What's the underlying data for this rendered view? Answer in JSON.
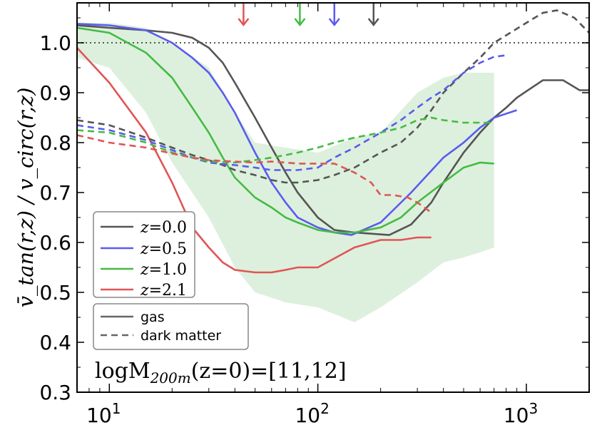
{
  "chart_data": {
    "type": "line",
    "x_scale": "log",
    "xlim": [
      7,
      2000
    ],
    "ylim": [
      0.3,
      1.08
    ],
    "ylabel": "v̄_tan(r,z) / v_circ(r,z)",
    "ytick_labels": [
      "0.3",
      "0.4",
      "0.5",
      "0.6",
      "0.7",
      "0.8",
      "0.9",
      "1.0"
    ],
    "yticks": [
      0.3,
      0.4,
      0.5,
      0.6,
      0.7,
      0.8,
      0.9,
      1.0
    ],
    "xticks": [
      10,
      100,
      1000
    ],
    "xtick_bases": [
      "10",
      "10",
      "10"
    ],
    "xtick_exps": [
      "1",
      "2",
      "3"
    ],
    "reference_line": {
      "y": 1.0,
      "style": "dotted",
      "color": "#555555"
    },
    "annotation": {
      "main": "logM",
      "sub": "200m",
      "rest": "(z=0)=[11,12]"
    },
    "band": {
      "color": "#2ca02c",
      "x": [
        7,
        10,
        15,
        20,
        30,
        40,
        50,
        70,
        100,
        150,
        200,
        300,
        400,
        500,
        600,
        700
      ],
      "upper": [
        1.04,
        1.04,
        1.03,
        1.0,
        0.95,
        0.86,
        0.8,
        0.79,
        0.78,
        0.81,
        0.82,
        0.9,
        0.93,
        0.94,
        0.94,
        0.94
      ],
      "lower": [
        0.97,
        0.95,
        0.86,
        0.76,
        0.65,
        0.55,
        0.5,
        0.48,
        0.47,
        0.44,
        0.47,
        0.52,
        0.56,
        0.57,
        0.58,
        0.59
      ]
    },
    "series": [
      {
        "name": "z=0.0",
        "color": "#555555",
        "style": "solid",
        "x": [
          7,
          10,
          15,
          20,
          25,
          30,
          35,
          40,
          50,
          60,
          70,
          80,
          100,
          120,
          150,
          220,
          280,
          350,
          400,
          500,
          600,
          700,
          800,
          900,
          1200,
          1500,
          1800,
          2000
        ],
        "y": [
          1.035,
          1.03,
          1.025,
          1.02,
          1.01,
          0.99,
          0.96,
          0.92,
          0.85,
          0.79,
          0.74,
          0.7,
          0.65,
          0.625,
          0.62,
          0.615,
          0.636,
          0.68,
          0.72,
          0.78,
          0.82,
          0.85,
          0.87,
          0.89,
          0.925,
          0.925,
          0.905,
          0.905
        ]
      },
      {
        "name": "z=0.5",
        "color": "#5b5bf0",
        "style": "solid",
        "x": [
          7,
          10,
          15,
          20,
          25,
          30,
          35,
          40,
          50,
          60,
          70,
          80,
          100,
          120,
          145,
          200,
          280,
          400,
          500,
          600,
          700,
          900
        ],
        "y": [
          1.038,
          1.035,
          1.025,
          1.0,
          0.97,
          0.94,
          0.9,
          0.86,
          0.78,
          0.72,
          0.68,
          0.65,
          0.63,
          0.62,
          0.615,
          0.64,
          0.7,
          0.77,
          0.8,
          0.83,
          0.85,
          0.865
        ]
      },
      {
        "name": "z=1.0",
        "color": "#44bb44",
        "style": "solid",
        "x": [
          7,
          10,
          15,
          20,
          25,
          30,
          35,
          40,
          50,
          60,
          70,
          80,
          100,
          120,
          150,
          200,
          250,
          300,
          400,
          500,
          600,
          700
        ],
        "y": [
          1.03,
          1.02,
          0.98,
          0.93,
          0.87,
          0.82,
          0.77,
          0.73,
          0.69,
          0.67,
          0.65,
          0.64,
          0.625,
          0.62,
          0.62,
          0.63,
          0.65,
          0.68,
          0.72,
          0.75,
          0.76,
          0.758
        ]
      },
      {
        "name": "z=2.1",
        "color": "#e05555",
        "style": "solid",
        "x": [
          7,
          10,
          15,
          20,
          25,
          30,
          35,
          40,
          50,
          60,
          70,
          80,
          100,
          150,
          200,
          250,
          300,
          350
        ],
        "y": [
          0.99,
          0.92,
          0.82,
          0.72,
          0.63,
          0.59,
          0.56,
          0.545,
          0.54,
          0.54,
          0.545,
          0.55,
          0.55,
          0.59,
          0.605,
          0.605,
          0.61,
          0.61
        ]
      },
      {
        "name": "z=0.0 dark matter",
        "color": "#555555",
        "style": "dashed",
        "x": [
          7,
          10,
          15,
          20,
          25,
          30,
          35,
          40,
          50,
          60,
          70,
          80,
          100,
          120,
          150,
          200,
          250,
          300,
          350,
          400,
          500,
          600,
          700,
          1000,
          1200,
          1400,
          1700,
          2000
        ],
        "y": [
          0.845,
          0.835,
          0.81,
          0.79,
          0.775,
          0.765,
          0.755,
          0.745,
          0.735,
          0.725,
          0.72,
          0.72,
          0.725,
          0.735,
          0.75,
          0.78,
          0.8,
          0.83,
          0.865,
          0.9,
          0.94,
          0.97,
          1.0,
          1.04,
          1.06,
          1.065,
          1.05,
          1.02
        ]
      },
      {
        "name": "z=0.5 dark matter",
        "color": "#5b5bf0",
        "style": "dashed",
        "x": [
          7,
          10,
          15,
          20,
          25,
          30,
          35,
          40,
          50,
          60,
          70,
          80,
          100,
          120,
          150,
          200,
          250,
          300,
          350,
          400,
          500,
          600,
          700,
          800
        ],
        "y": [
          0.835,
          0.825,
          0.805,
          0.785,
          0.77,
          0.76,
          0.757,
          0.755,
          0.75,
          0.745,
          0.745,
          0.745,
          0.75,
          0.77,
          0.79,
          0.82,
          0.845,
          0.87,
          0.89,
          0.905,
          0.94,
          0.96,
          0.972,
          0.975
        ]
      },
      {
        "name": "z=1.0 dark matter",
        "color": "#44bb44",
        "style": "dashed",
        "x": [
          7,
          10,
          15,
          20,
          25,
          30,
          40,
          50,
          60,
          70,
          80,
          100,
          120,
          150,
          200,
          250,
          300,
          350,
          400,
          500,
          600,
          700
        ],
        "y": [
          0.825,
          0.82,
          0.8,
          0.78,
          0.77,
          0.762,
          0.76,
          0.765,
          0.77,
          0.775,
          0.78,
          0.79,
          0.8,
          0.81,
          0.82,
          0.83,
          0.845,
          0.85,
          0.845,
          0.84,
          0.84,
          0.84
        ]
      },
      {
        "name": "z=2.1 dark matter",
        "color": "#e05555",
        "style": "dashed",
        "x": [
          7,
          10,
          15,
          20,
          25,
          30,
          40,
          50,
          60,
          70,
          80,
          100,
          120,
          150,
          180,
          200,
          230,
          270,
          300,
          350
        ],
        "y": [
          0.815,
          0.8,
          0.79,
          0.778,
          0.77,
          0.765,
          0.762,
          0.76,
          0.762,
          0.76,
          0.758,
          0.758,
          0.758,
          0.74,
          0.72,
          0.695,
          0.695,
          0.69,
          0.68,
          0.66
        ]
      }
    ],
    "arrows": [
      {
        "x": 44,
        "color": "#e05555"
      },
      {
        "x": 82,
        "color": "#44bb44"
      },
      {
        "x": 120,
        "color": "#5b5bf0"
      },
      {
        "x": 185,
        "color": "#555555"
      }
    ],
    "legend_z": [
      {
        "label_prefix": "z",
        "label_value": "=0.0",
        "color": "#555555"
      },
      {
        "label_prefix": "z",
        "label_value": "=0.5",
        "color": "#5b5bf0"
      },
      {
        "label_prefix": "z",
        "label_value": "=1.0",
        "color": "#44bb44"
      },
      {
        "label_prefix": "z",
        "label_value": "=2.1",
        "color": "#e05555"
      }
    ],
    "legend_style": [
      {
        "label": "gas",
        "style": "solid",
        "color": "#666666"
      },
      {
        "label": "dark matter",
        "style": "dashed",
        "color": "#666666"
      }
    ],
    "legend_placement": "lower-left"
  }
}
